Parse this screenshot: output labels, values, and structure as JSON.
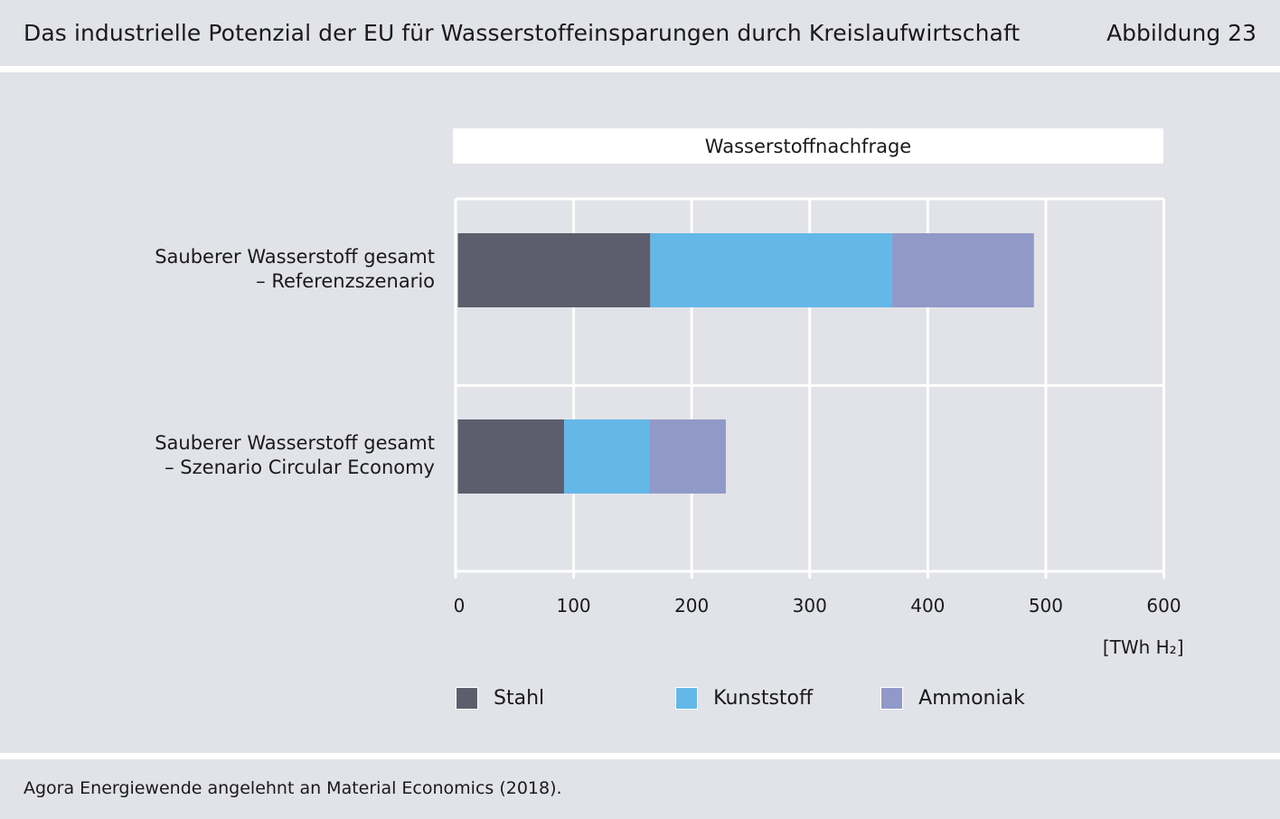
{
  "header": {
    "title": "Das industrielle Potenzial der EU für Wasserstoffeinsparungen durch Kreislaufwirtschaft",
    "figure_label": "Abbildung 23"
  },
  "footer": {
    "source": "Agora Energiewende angelehnt an Material Economics (2018)."
  },
  "colors": {
    "background": "#e2e3e8",
    "grid": "#ffffff",
    "stahl": "#5d5e6d",
    "kunststoff": "#63b8e8",
    "ammoniak": "#9099c8"
  },
  "chart_data": {
    "type": "bar",
    "orientation": "horizontal",
    "stacked": true,
    "title": "Wasserstoffnachfrage",
    "unit": "[TWh H₂]",
    "xlim": [
      0,
      600
    ],
    "xticks": [
      "0",
      "100",
      "200",
      "300",
      "400",
      "500",
      "600"
    ],
    "grid": true,
    "legend_position": "bottom",
    "categories": [
      "Sauberer Wasserstoff gesamt\n– Referenzszenario",
      "Sauberer Wasserstoff gesamt\n– Szenario Circular Economy"
    ],
    "category_lines": [
      [
        "Sauberer Wasserstoff gesamt",
        "– Referenzszenario"
      ],
      [
        "Sauberer Wasserstoff gesamt",
        "– Szenario Circular Economy"
      ]
    ],
    "series": [
      {
        "name": "Stahl",
        "color": "#5d5e6d",
        "values": [
          163,
          90
        ]
      },
      {
        "name": "Kunststoff",
        "color": "#63b8e8",
        "values": [
          205,
          72
        ]
      },
      {
        "name": "Ammoniak",
        "color": "#9099c8",
        "values": [
          120,
          65
        ]
      }
    ]
  }
}
